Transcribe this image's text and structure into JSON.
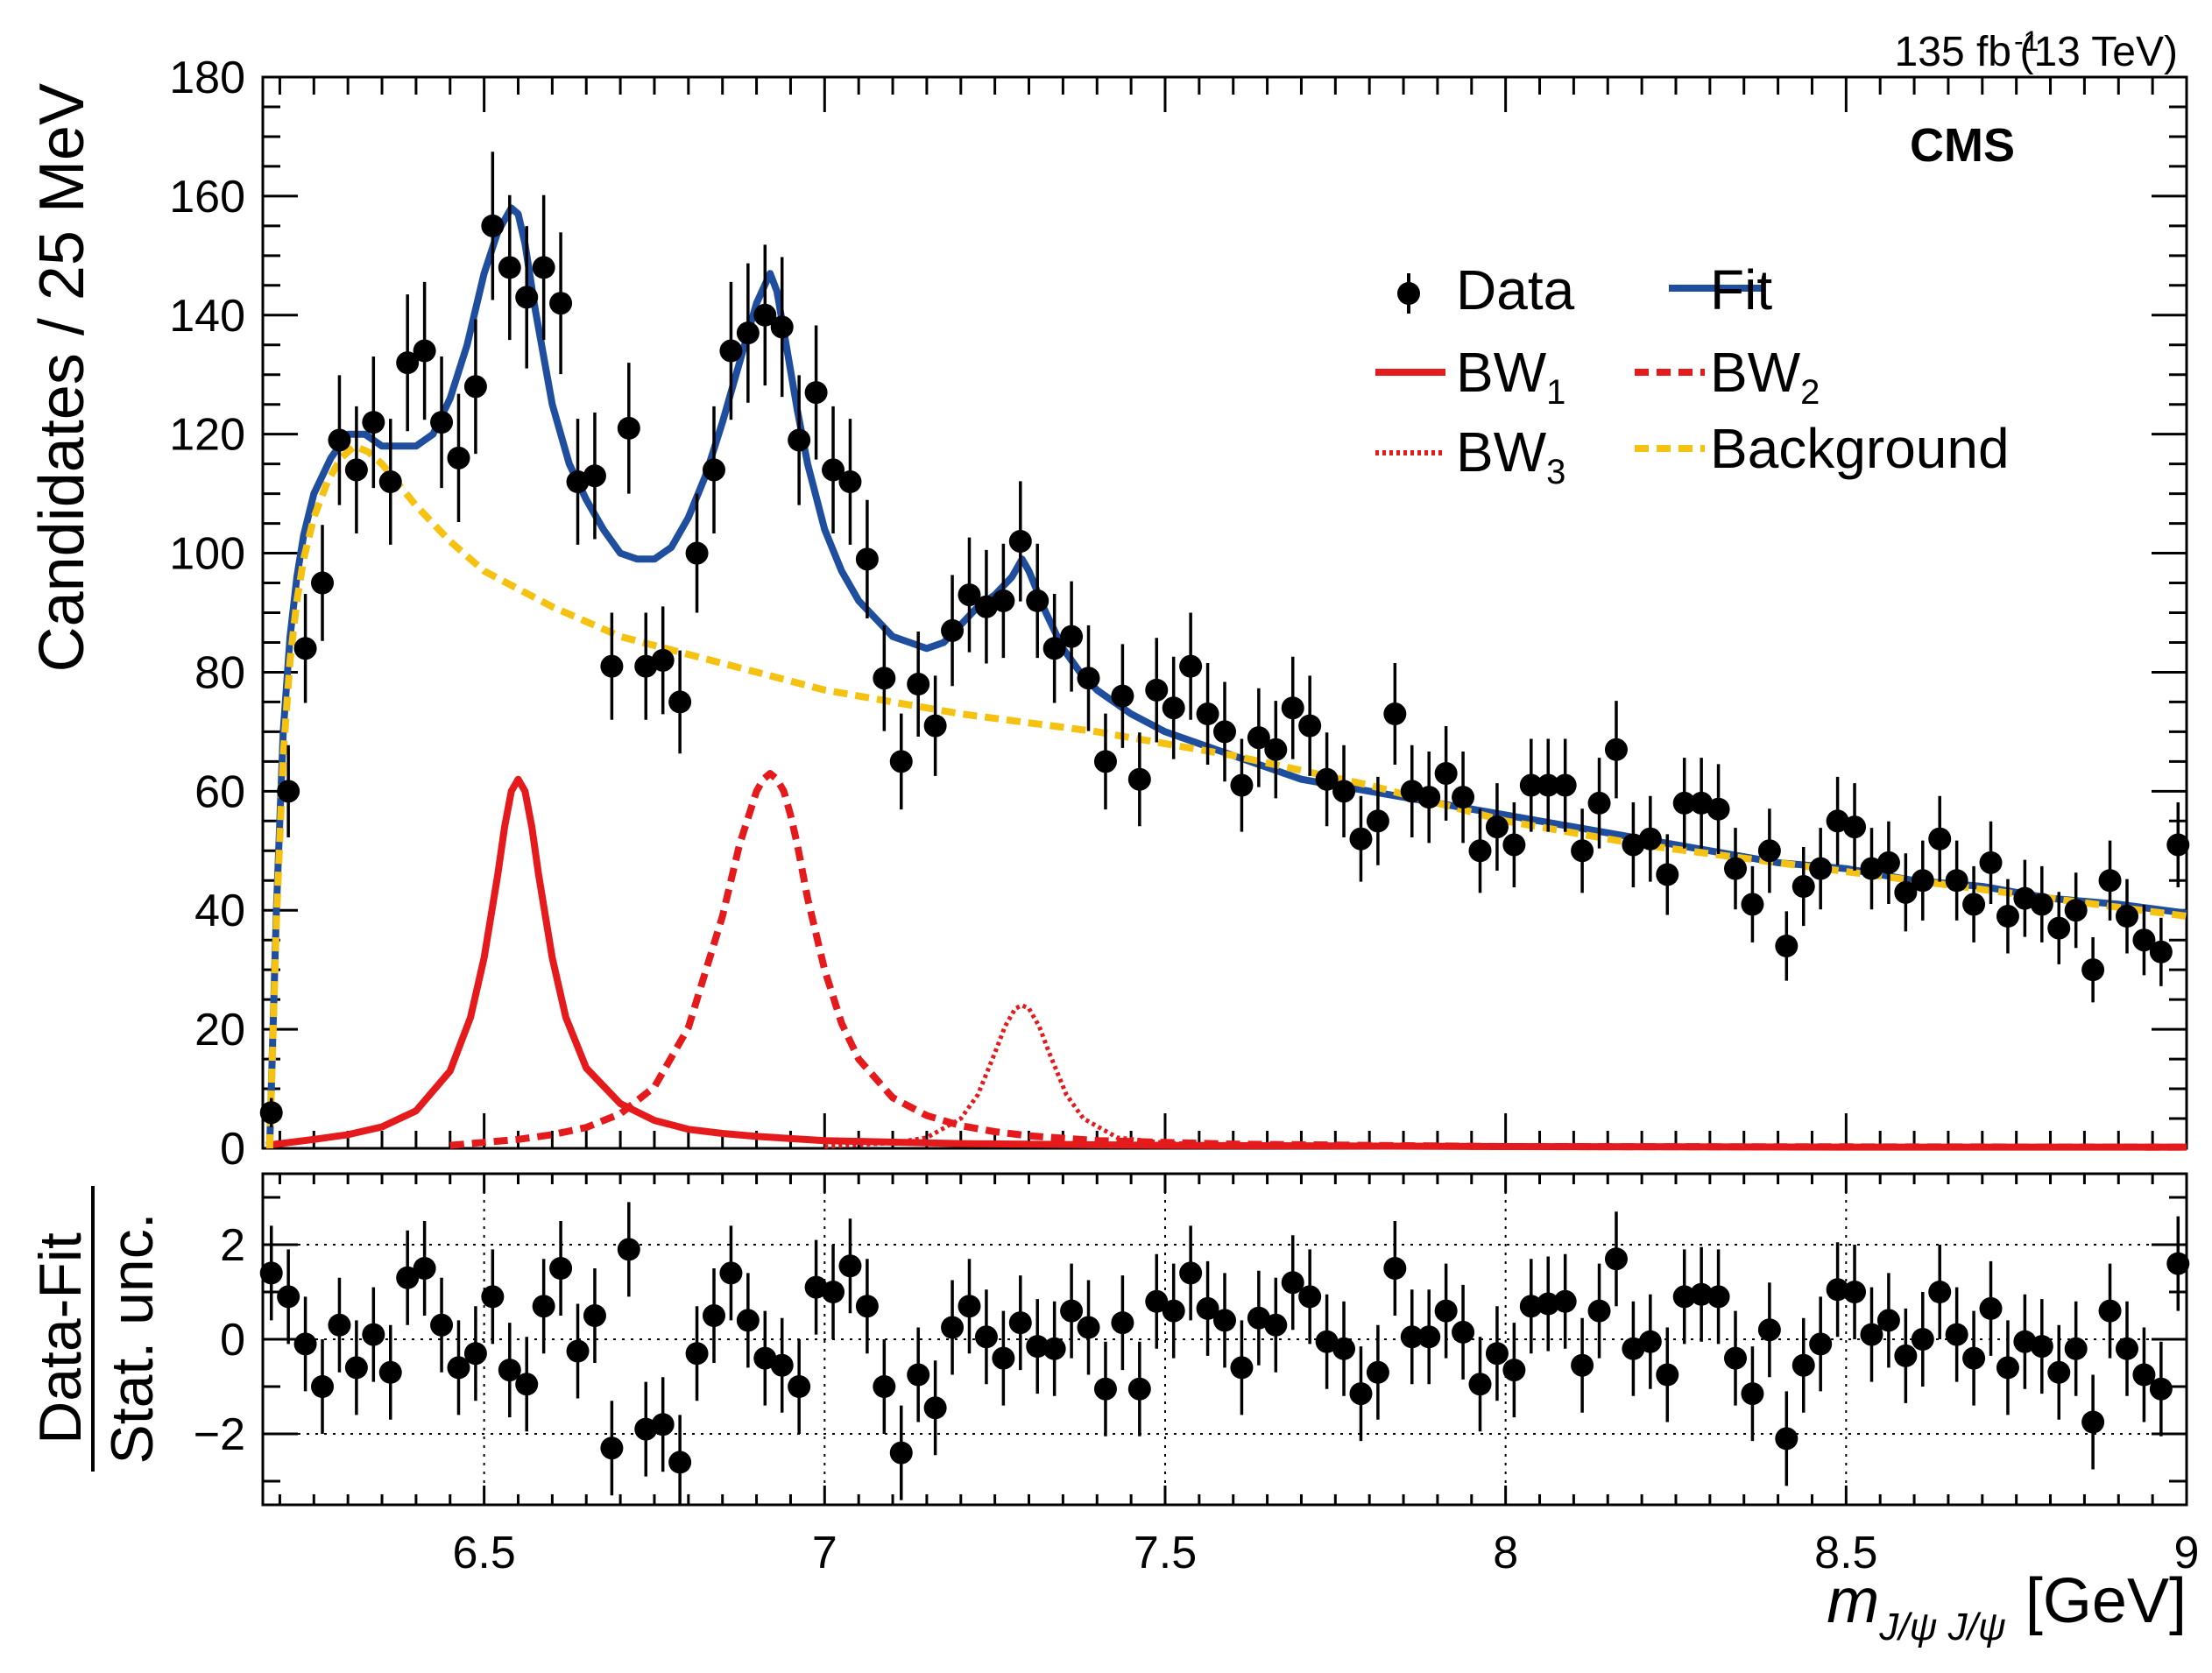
{
  "chart_data": [
    {
      "type": "scatter",
      "name": "main-panel",
      "ylabel": "Candidates / 25 MeV",
      "xlim": [
        6.175,
        9.0
      ],
      "ylim": [
        0,
        180
      ],
      "yticks": [
        "0",
        "20",
        "40",
        "60",
        "80",
        "100",
        "120",
        "140",
        "160",
        "180"
      ],
      "lumi": "135 fb",
      "lumi_sup": "-1",
      "energy": "(13 TeV)",
      "experiment": "CMS",
      "legend": {
        "data": "Data",
        "fit": "Fit",
        "bw": "BW",
        "bw1_sub": "1",
        "bw2_sub": "2",
        "bw3_sub": "3",
        "background": "Background"
      },
      "colors": {
        "data": "#000000",
        "fit": "#1f4e9e",
        "bw": "#e41a1c",
        "background": "#f5c211"
      },
      "series": [
        {
          "name": "Data",
          "x": [
            6.1875,
            6.2125,
            6.2375,
            6.2625,
            6.2875,
            6.3125,
            6.3375,
            6.3625,
            6.3875,
            6.4125,
            6.4375,
            6.4625,
            6.4875,
            6.5125,
            6.5375,
            6.5625,
            6.5875,
            6.6125,
            6.6375,
            6.6625,
            6.6875,
            6.7125,
            6.7375,
            6.7625,
            6.7875,
            6.8125,
            6.8375,
            6.8625,
            6.8875,
            6.9125,
            6.9375,
            6.9625,
            6.9875,
            7.0125,
            7.0375,
            7.0625,
            7.0875,
            7.1125,
            7.1375,
            7.1625,
            7.1875,
            7.2125,
            7.2375,
            7.2625,
            7.2875,
            7.3125,
            7.3375,
            7.3625,
            7.3875,
            7.4125,
            7.4375,
            7.4625,
            7.4875,
            7.5125,
            7.5375,
            7.5625,
            7.5875,
            7.6125,
            7.6375,
            7.6625,
            7.6875,
            7.7125,
            7.7375,
            7.7625,
            7.7875,
            7.8125,
            7.8375,
            7.8625,
            7.8875,
            7.9125,
            7.9375,
            7.9625,
            7.9875,
            8.0125,
            8.0375,
            8.0625,
            8.0875,
            8.1125,
            8.1375,
            8.1625,
            8.1875,
            8.2125,
            8.2375,
            8.2625,
            8.2875,
            8.3125,
            8.3375,
            8.3625,
            8.3875,
            8.4125,
            8.4375,
            8.4625,
            8.4875,
            8.5125,
            8.5375,
            8.5625,
            8.5875,
            8.6125,
            8.6375,
            8.6625,
            8.6875,
            8.7125,
            8.7375,
            8.7625,
            8.7875,
            8.8125,
            8.8375,
            8.8625,
            8.8875,
            8.9125,
            8.9375,
            8.9625,
            8.9875
          ],
          "y": [
            6,
            60,
            84,
            95,
            119,
            114,
            122,
            112,
            132,
            134,
            122,
            116,
            128,
            155,
            148,
            143,
            148,
            142,
            112,
            113,
            81,
            121,
            81,
            82,
            75,
            100,
            114,
            134,
            137,
            140,
            138,
            119,
            127,
            114,
            112,
            99,
            79,
            65,
            78,
            71,
            87,
            93,
            91,
            92,
            102,
            92,
            84,
            86,
            79,
            65,
            76,
            62,
            77,
            74,
            81,
            73,
            70,
            61,
            69,
            67,
            74,
            71,
            62,
            60,
            52,
            55,
            73,
            60,
            59,
            63,
            59,
            50,
            54,
            51,
            61,
            61,
            61,
            50,
            58,
            67,
            51,
            52,
            46,
            58,
            58,
            57,
            47,
            41,
            50,
            34,
            44,
            47,
            55,
            54,
            47,
            48,
            43,
            45,
            52,
            45,
            41,
            48,
            39,
            42,
            41,
            37,
            40,
            30,
            45,
            39,
            35,
            33,
            51
          ]
        },
        {
          "name": "Fit",
          "x": [
            6.185,
            6.195,
            6.205,
            6.215,
            6.225,
            6.235,
            6.25,
            6.275,
            6.3,
            6.325,
            6.35,
            6.375,
            6.4,
            6.425,
            6.45,
            6.475,
            6.5,
            6.52,
            6.54,
            6.55,
            6.56,
            6.575,
            6.6,
            6.625,
            6.65,
            6.675,
            6.7,
            6.725,
            6.75,
            6.775,
            6.8,
            6.825,
            6.85,
            6.875,
            6.9,
            6.92,
            6.93,
            6.945,
            6.96,
            6.975,
            7.0,
            7.025,
            7.05,
            7.075,
            7.1,
            7.125,
            7.15,
            7.175,
            7.2,
            7.225,
            7.25,
            7.275,
            7.29,
            7.3,
            7.325,
            7.35,
            7.375,
            7.4,
            7.45,
            7.5,
            7.6,
            7.7,
            7.8,
            7.9,
            8.0,
            8.1,
            8.2,
            8.3,
            8.4,
            8.5,
            8.6,
            8.7,
            8.8,
            8.9,
            9.0
          ],
          "y": [
            0,
            40,
            70,
            86,
            96,
            103,
            110,
            116,
            120,
            120,
            118,
            118,
            118,
            120,
            126,
            135,
            147,
            154,
            158,
            157,
            152,
            141,
            125,
            115,
            109,
            104,
            100,
            99,
            99,
            101,
            106,
            113,
            122,
            132,
            142,
            147,
            144,
            134,
            124,
            115,
            104,
            97,
            92,
            89,
            86,
            85,
            84,
            85,
            88,
            91,
            93,
            96,
            99,
            97,
            90,
            84,
            80,
            77,
            73,
            70,
            66,
            62,
            60,
            58,
            56,
            54,
            52,
            50,
            48,
            47,
            45,
            44,
            42,
            41,
            39.5
          ]
        },
        {
          "name": "BW1",
          "x": [
            6.18,
            6.25,
            6.3,
            6.35,
            6.4,
            6.45,
            6.48,
            6.5,
            6.52,
            6.53,
            6.54,
            6.55,
            6.56,
            6.57,
            6.58,
            6.6,
            6.62,
            6.65,
            6.7,
            6.75,
            6.8,
            6.85,
            6.9,
            7.0,
            7.2,
            7.5,
            8.0,
            8.5,
            9.0
          ],
          "y": [
            0.5,
            1.5,
            2.3,
            3.6,
            6.3,
            13,
            22,
            32,
            46,
            54,
            60,
            62,
            60,
            54,
            46,
            32,
            22,
            13.5,
            7.5,
            4.7,
            3.2,
            2.5,
            2.0,
            1.3,
            0.8,
            0.5,
            0.3,
            0.2,
            0.2
          ]
        },
        {
          "name": "BW2",
          "x": [
            6.45,
            6.5,
            6.55,
            6.6,
            6.65,
            6.7,
            6.75,
            6.8,
            6.85,
            6.875,
            6.9,
            6.91,
            6.92,
            6.93,
            6.94,
            6.95,
            6.96,
            6.975,
            7.0,
            7.025,
            7.05,
            7.1,
            7.15,
            7.2,
            7.25,
            7.3,
            7.4,
            7.6,
            8.0,
            9.0
          ],
          "y": [
            0.5,
            1,
            1.5,
            2.3,
            3.5,
            5.8,
            10.3,
            20.3,
            39,
            51,
            60,
            62,
            63,
            62,
            60,
            56,
            51,
            42,
            30,
            21,
            15,
            8.5,
            5.5,
            3.8,
            2.8,
            2.1,
            1.3,
            0.7,
            0.3,
            0.2
          ]
        },
        {
          "name": "BW3",
          "x": [
            7.0,
            7.1,
            7.15,
            7.2,
            7.225,
            7.25,
            7.265,
            7.28,
            7.29,
            7.3,
            7.315,
            7.33,
            7.355,
            7.38,
            7.43,
            7.5,
            7.6,
            8.0,
            9.0
          ],
          "y": [
            0.3,
            0.9,
            1.8,
            5,
            9,
            16,
            20.5,
            23.5,
            24,
            23.5,
            20.5,
            16,
            9,
            5,
            1.8,
            0.9,
            0.5,
            0.1,
            0
          ]
        },
        {
          "name": "Background",
          "x": [
            6.185,
            6.195,
            6.205,
            6.215,
            6.225,
            6.235,
            6.25,
            6.27,
            6.29,
            6.31,
            6.33,
            6.35,
            6.4,
            6.45,
            6.5,
            6.6,
            6.7,
            6.8,
            6.9,
            7.0,
            7.2,
            7.4,
            7.6,
            7.8,
            8.0,
            8.2,
            8.4,
            8.6,
            8.8,
            9.0
          ],
          "y": [
            0,
            38,
            66,
            82,
            92,
            99,
            106,
            112,
            116,
            118,
            117,
            115,
            108,
            102,
            97,
            91,
            86,
            83,
            80,
            77,
            73,
            70,
            66,
            61,
            55,
            51,
            48,
            45,
            42,
            39
          ]
        }
      ]
    },
    {
      "type": "scatter",
      "name": "ratio-panel",
      "ylabel_top": "Data-Fit",
      "ylabel_bottom": "Stat. unc.",
      "xlabel_m": "m",
      "xlabel_sub": "J/ψ J/ψ",
      "xlabel_unit": "[GeV]",
      "xlim": [
        6.175,
        9.0
      ],
      "ylim": [
        -3.5,
        3.5
      ],
      "yticks": [
        "−2",
        "0",
        "2"
      ],
      "xticks": [
        "6.5",
        "7",
        "7.5",
        "8",
        "8.5",
        "9"
      ],
      "series": [
        {
          "name": "Data-Fit / Stat. unc.",
          "x": [
            6.1875,
            6.2125,
            6.2375,
            6.2625,
            6.2875,
            6.3125,
            6.3375,
            6.3625,
            6.3875,
            6.4125,
            6.4375,
            6.4625,
            6.4875,
            6.5125,
            6.5375,
            6.5625,
            6.5875,
            6.6125,
            6.6375,
            6.6625,
            6.6875,
            6.7125,
            6.7375,
            6.7625,
            6.7875,
            6.8125,
            6.8375,
            6.8625,
            6.8875,
            6.9125,
            6.9375,
            6.9625,
            6.9875,
            7.0125,
            7.0375,
            7.0625,
            7.0875,
            7.1125,
            7.1375,
            7.1625,
            7.1875,
            7.2125,
            7.2375,
            7.2625,
            7.2875,
            7.3125,
            7.3375,
            7.3625,
            7.3875,
            7.4125,
            7.4375,
            7.4625,
            7.4875,
            7.5125,
            7.5375,
            7.5625,
            7.5875,
            7.6125,
            7.6375,
            7.6625,
            7.6875,
            7.7125,
            7.7375,
            7.7625,
            7.7875,
            7.8125,
            7.8375,
            7.8625,
            7.8875,
            7.9125,
            7.9375,
            7.9625,
            7.9875,
            8.0125,
            8.0375,
            8.0625,
            8.0875,
            8.1125,
            8.1375,
            8.1625,
            8.1875,
            8.2125,
            8.2375,
            8.2625,
            8.2875,
            8.3125,
            8.3375,
            8.3625,
            8.3875,
            8.4125,
            8.4375,
            8.4625,
            8.4875,
            8.5125,
            8.5375,
            8.5625,
            8.5875,
            8.6125,
            8.6375,
            8.6625,
            8.6875,
            8.7125,
            8.7375,
            8.7625,
            8.7875,
            8.8125,
            8.8375,
            8.8625,
            8.8875,
            8.9125,
            8.9375,
            8.9625,
            8.9875
          ],
          "y": [
            1.4,
            0.9,
            -0.1,
            -1.0,
            0.3,
            -0.6,
            0.1,
            -0.7,
            1.3,
            1.5,
            0.3,
            -0.6,
            -0.3,
            0.9,
            -0.65,
            -0.95,
            0.7,
            1.5,
            -0.25,
            0.5,
            -2.3,
            1.9,
            -1.9,
            -1.8,
            -2.6,
            -0.3,
            0.5,
            1.4,
            0.4,
            -0.4,
            -0.55,
            -1.0,
            1.1,
            1.0,
            1.55,
            0.7,
            -1.0,
            -2.4,
            -0.75,
            -1.45,
            0.25,
            0.7,
            0.05,
            -0.4,
            0.35,
            -0.15,
            -0.2,
            0.6,
            0.25,
            -1.05,
            0.35,
            -1.05,
            0.8,
            0.6,
            1.4,
            0.65,
            0.4,
            -0.6,
            0.45,
            0.3,
            1.2,
            0.9,
            -0.05,
            -0.2,
            -1.15,
            -0.7,
            1.5,
            0.05,
            0.05,
            0.6,
            0.15,
            -0.95,
            -0.3,
            -0.65,
            0.7,
            0.75,
            0.8,
            -0.55,
            0.6,
            1.7,
            -0.2,
            -0.05,
            -0.75,
            0.9,
            0.95,
            0.9,
            -0.4,
            -1.15,
            0.2,
            -2.1,
            -0.55,
            -0.1,
            1.05,
            1.0,
            0.1,
            0.4,
            -0.35,
            0.0,
            1.0,
            0.1,
            -0.4,
            0.65,
            -0.6,
            -0.05,
            -0.15,
            -0.7,
            -0.2,
            -1.75,
            0.6,
            -0.2,
            -0.75,
            -1.05,
            1.6
          ]
        }
      ]
    }
  ]
}
